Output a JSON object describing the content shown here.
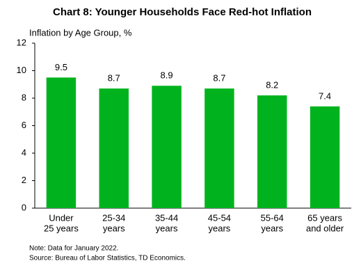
{
  "chart_data": {
    "type": "bar",
    "title": "Chart 8: Younger Households Face Red-hot Inflation",
    "y_axis_label": "Inflation by Age Group, %",
    "categories": [
      [
        "Under",
        "25 years"
      ],
      [
        "25-34",
        "years"
      ],
      [
        "35-44",
        "years"
      ],
      [
        "45-54",
        "years"
      ],
      [
        "55-64",
        "years"
      ],
      [
        "65 years",
        "and older"
      ]
    ],
    "values": [
      9.5,
      8.7,
      8.9,
      8.7,
      8.2,
      7.4
    ],
    "color": "#00b31e",
    "ylim": [
      0,
      12
    ],
    "yticks": [
      0,
      2,
      4,
      6,
      8,
      10,
      12
    ],
    "grid": false,
    "notes": [
      "Note: Data for January 2022.",
      "Source: Bureau of Labor Statistics, TD Economics."
    ]
  }
}
